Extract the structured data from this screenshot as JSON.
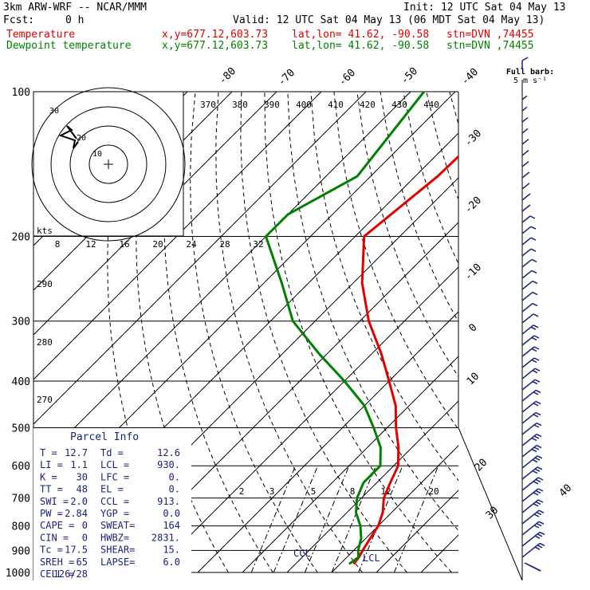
{
  "header": {
    "model": "3km ARW-WRF -- NCAR/MMM",
    "init": "Init: 12 UTC Sat 04 May 13",
    "fcst_label": "Fcst:",
    "fcst_value": "0 h",
    "valid": "Valid: 12 UTC Sat 04 May 13 (06 MDT Sat 04 May 13)",
    "temp_label": "Temperature",
    "dew_label": "Dewpoint temperature",
    "xy": "x,y=677.12,603.73",
    "latlon": "lat,lon= 41.62, -90.58",
    "stn": "stn=DVN ,74455"
  },
  "colors": {
    "temperature": "#e00000",
    "dewpoint": "#008000",
    "grid": "#000000",
    "barbs": "#1a237e",
    "info": "#1a237e"
  },
  "legend": {
    "barb_title": "Full barb:",
    "barb_units": "5 m s⁻¹"
  },
  "labels": {
    "kts": "kts",
    "ccl": "CCL",
    "lcl": "LCL"
  },
  "parcel_info": {
    "title": "Parcel Info",
    "rows": [
      [
        "T  =",
        "12.7",
        "Td =",
        "12.6"
      ],
      [
        "LI =",
        "1.1",
        "LCL =",
        "930."
      ],
      [
        "K  =",
        "30",
        "LFC =",
        "0."
      ],
      [
        "TT =",
        "48",
        "EL  =",
        "0."
      ],
      [
        "SWI =",
        "2.0",
        "CCL =",
        "913."
      ],
      [
        "PW =",
        "2.84",
        "YGP =",
        "0.0"
      ],
      [
        "CAPE =",
        "0",
        "SWEAT=",
        "164"
      ],
      [
        "CIN  =",
        "0",
        "HWBZ=",
        "2831."
      ],
      [
        "Tc =",
        "17.5",
        "SHEAR=",
        "15."
      ],
      [
        "SREH =",
        "65",
        "LAPSE=",
        "6.0"
      ],
      [
        "CELL =",
        "126/28",
        "",
        ""
      ]
    ]
  },
  "chart_data": {
    "type": "line",
    "title": "",
    "pressure_levels": [
      "100",
      "200",
      "300",
      "400",
      "500",
      "600",
      "700",
      "800",
      "900",
      "1000"
    ],
    "isotherm_labels": [
      "-80",
      "-70",
      "-60",
      "-50",
      "-40",
      "-30",
      "-20",
      "-10",
      "0",
      "10",
      "20",
      "30",
      "40"
    ],
    "theta_labels": [
      "370",
      "380",
      "390",
      "400",
      "410",
      "420",
      "430",
      "440"
    ],
    "theta_left_labels": [
      "290",
      "280",
      "270"
    ],
    "mixing_ratio_labels": [
      "2",
      "3",
      "5",
      "8",
      "12",
      "20"
    ],
    "hodograph_speed_labels": [
      "8",
      "12",
      "16",
      "20",
      "24",
      "28",
      "32"
    ],
    "hodograph_ring_labels": [
      "10",
      "20",
      "30"
    ],
    "series": [
      {
        "name": "Temperature",
        "points": [
          [
            100,
            -54
          ],
          [
            150,
            -55
          ],
          [
            200,
            -58
          ],
          [
            250,
            -48
          ],
          [
            300,
            -38
          ],
          [
            350,
            -28
          ],
          [
            400,
            -20
          ],
          [
            450,
            -13
          ],
          [
            500,
            -8
          ],
          [
            550,
            -3
          ],
          [
            600,
            1
          ],
          [
            650,
            3
          ],
          [
            700,
            5
          ],
          [
            750,
            8
          ],
          [
            800,
            10
          ],
          [
            850,
            11
          ],
          [
            900,
            12
          ],
          [
            930,
            12.7
          ],
          [
            960,
            13
          ]
        ]
      },
      {
        "name": "Dewpoint temperature",
        "points": [
          [
            100,
            -77
          ],
          [
            150,
            -73
          ],
          [
            180,
            -80
          ],
          [
            200,
            -80
          ],
          [
            250,
            -66
          ],
          [
            300,
            -55
          ],
          [
            350,
            -42
          ],
          [
            400,
            -30
          ],
          [
            450,
            -20
          ],
          [
            500,
            -13
          ],
          [
            550,
            -7
          ],
          [
            600,
            -3
          ],
          [
            650,
            -3
          ],
          [
            700,
            -1
          ],
          [
            750,
            2
          ],
          [
            800,
            6
          ],
          [
            850,
            9
          ],
          [
            900,
            11
          ],
          [
            930,
            12.6
          ],
          [
            960,
            12
          ]
        ]
      }
    ]
  }
}
